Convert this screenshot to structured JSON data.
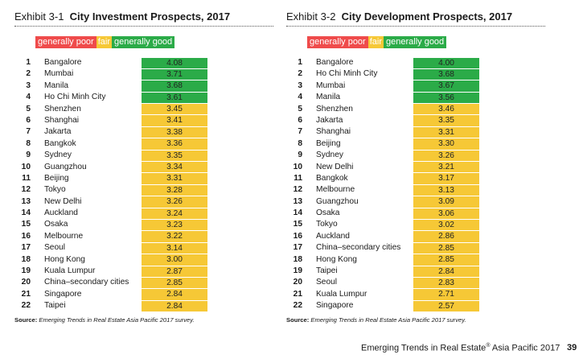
{
  "colors": {
    "poor": "#ef4b4b",
    "fair": "#f6c836",
    "good": "#2bab48"
  },
  "legend": {
    "poor": "generally poor",
    "fair": "fair",
    "good": "generally good"
  },
  "investment": {
    "number": "Exhibit 3-1",
    "title": "City Investment Prospects, 2017",
    "rows": [
      {
        "rank": "1",
        "city": "Bangalore",
        "score": "4.08",
        "band": "good"
      },
      {
        "rank": "2",
        "city": "Mumbai",
        "score": "3.71",
        "band": "good"
      },
      {
        "rank": "3",
        "city": "Manila",
        "score": "3.68",
        "band": "good"
      },
      {
        "rank": "4",
        "city": "Ho Chi Minh City",
        "score": "3.61",
        "band": "good"
      },
      {
        "rank": "5",
        "city": "Shenzhen",
        "score": "3.45",
        "band": "fair"
      },
      {
        "rank": "6",
        "city": "Shanghai",
        "score": "3.41",
        "band": "fair"
      },
      {
        "rank": "7",
        "city": "Jakarta",
        "score": "3.38",
        "band": "fair"
      },
      {
        "rank": "8",
        "city": "Bangkok",
        "score": "3.36",
        "band": "fair"
      },
      {
        "rank": "9",
        "city": "Sydney",
        "score": "3.35",
        "band": "fair"
      },
      {
        "rank": "10",
        "city": "Guangzhou",
        "score": "3.34",
        "band": "fair"
      },
      {
        "rank": "11",
        "city": "Beijing",
        "score": "3.31",
        "band": "fair"
      },
      {
        "rank": "12",
        "city": "Tokyo",
        "score": "3.28",
        "band": "fair"
      },
      {
        "rank": "13",
        "city": "New Delhi",
        "score": "3.26",
        "band": "fair"
      },
      {
        "rank": "14",
        "city": "Auckland",
        "score": "3.24",
        "band": "fair"
      },
      {
        "rank": "15",
        "city": "Osaka",
        "score": "3.23",
        "band": "fair"
      },
      {
        "rank": "16",
        "city": "Melbourne",
        "score": "3.22",
        "band": "fair"
      },
      {
        "rank": "17",
        "city": "Seoul",
        "score": "3.14",
        "band": "fair"
      },
      {
        "rank": "18",
        "city": "Hong Kong",
        "score": "3.00",
        "band": "fair"
      },
      {
        "rank": "19",
        "city": "Kuala Lumpur",
        "score": "2.87",
        "band": "fair"
      },
      {
        "rank": "20",
        "city": "China–secondary cities",
        "score": "2.85",
        "band": "fair"
      },
      {
        "rank": "21",
        "city": "Singapore",
        "score": "2.84",
        "band": "fair"
      },
      {
        "rank": "22",
        "city": "Taipei",
        "score": "2.84",
        "band": "fair"
      }
    ],
    "source_label": "Source:",
    "source_text": "Emerging Trends in Real Estate Asia Pacific 2017 survey."
  },
  "development": {
    "number": "Exhibit 3-2",
    "title": "City Development Prospects, 2017",
    "rows": [
      {
        "rank": "1",
        "city": "Bangalore",
        "score": "4.00",
        "band": "good"
      },
      {
        "rank": "2",
        "city": "Ho Chi Minh City",
        "score": "3.68",
        "band": "good"
      },
      {
        "rank": "3",
        "city": "Mumbai",
        "score": "3.67",
        "band": "good"
      },
      {
        "rank": "4",
        "city": "Manila",
        "score": "3.56",
        "band": "good"
      },
      {
        "rank": "5",
        "city": "Shenzhen",
        "score": "3.46",
        "band": "fair"
      },
      {
        "rank": "6",
        "city": "Jakarta",
        "score": "3.35",
        "band": "fair"
      },
      {
        "rank": "7",
        "city": "Shanghai",
        "score": "3.31",
        "band": "fair"
      },
      {
        "rank": "8",
        "city": "Beijing",
        "score": "3.30",
        "band": "fair"
      },
      {
        "rank": "9",
        "city": "Sydney",
        "score": "3.26",
        "band": "fair"
      },
      {
        "rank": "10",
        "city": "New Delhi",
        "score": "3.21",
        "band": "fair"
      },
      {
        "rank": "11",
        "city": "Bangkok",
        "score": "3.17",
        "band": "fair"
      },
      {
        "rank": "12",
        "city": "Melbourne",
        "score": "3.13",
        "band": "fair"
      },
      {
        "rank": "13",
        "city": "Guangzhou",
        "score": "3.09",
        "band": "fair"
      },
      {
        "rank": "14",
        "city": "Osaka",
        "score": "3.06",
        "band": "fair"
      },
      {
        "rank": "15",
        "city": "Tokyo",
        "score": "3.02",
        "band": "fair"
      },
      {
        "rank": "16",
        "city": "Auckland",
        "score": "2.86",
        "band": "fair"
      },
      {
        "rank": "17",
        "city": "China–secondary cities",
        "score": "2.85",
        "band": "fair"
      },
      {
        "rank": "18",
        "city": "Hong Kong",
        "score": "2.85",
        "band": "fair"
      },
      {
        "rank": "19",
        "city": "Taipei",
        "score": "2.84",
        "band": "fair"
      },
      {
        "rank": "20",
        "city": "Seoul",
        "score": "2.83",
        "band": "fair"
      },
      {
        "rank": "21",
        "city": "Kuala Lumpur",
        "score": "2.71",
        "band": "fair"
      },
      {
        "rank": "22",
        "city": "Singapore",
        "score": "2.57",
        "band": "fair"
      }
    ],
    "source_label": "Source:",
    "source_text": "Emerging Trends in Real Estate Asia Pacific 2017 survey."
  },
  "footer": {
    "text": "Emerging Trends in Real Estate",
    "reg": "®",
    "text2": " Asia Pacific 2017",
    "page": "39"
  }
}
